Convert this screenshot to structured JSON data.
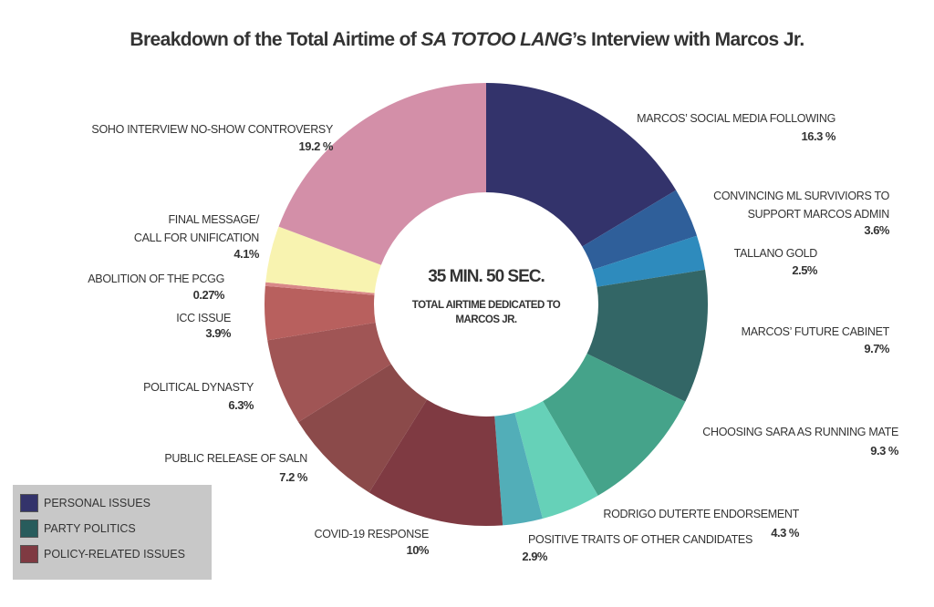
{
  "chart_data": {
    "type": "donut",
    "title_parts": [
      "Breakdown of the Total Airtime of ",
      "SA TOTOO LANG",
      "’s Interview with Marcos Jr."
    ],
    "center_text": [
      "35 MIN. 50 SEC.",
      "TOTAL AIRTIME DEDICATED TO\nMARCOS JR."
    ],
    "categories": [
      "MARCOS’ SOCIAL MEDIA FOLLOWING",
      "CONVINCING ML SURVIVIORS TO\nSUPPORT MARCOS ADMIN",
      "TALLANO GOLD",
      "MARCOS’ FUTURE CABINET",
      "CHOOSING SARA AS RUNNING MATE",
      "RODRIGO DUTERTE ENDORSEMENT",
      "POSITIVE TRAITS OF OTHER CANDIDATES",
      "COVID-19 RESPONSE",
      "PUBLIC RELEASE OF SALN",
      "POLITICAL DYNASTY",
      "ICC ISSUE",
      "ABOLITION OF THE PCGG",
      "FINAL MESSAGE/\nCALL FOR UNIFICATION",
      "SOHO INTERVIEW NO-SHOW CONTROVERSY"
    ],
    "values": [
      16.3,
      3.6,
      2.5,
      9.7,
      9.3,
      4.3,
      2.9,
      10,
      7.2,
      6.3,
      3.9,
      0.27,
      4.1,
      19.2
    ],
    "value_labels": [
      "16.3 %",
      "3.6%",
      "2.5%",
      "9.7%",
      "9.3 %",
      "4.3 %",
      "2.9%",
      "10%",
      "7.2 %",
      "6.3%",
      "3.9%",
      "0.27%",
      "4.1%",
      "19.2 %"
    ],
    "colors": [
      "#33336b",
      "#2f5f9a",
      "#2e8bbd",
      "#336666",
      "#45a38a",
      "#66d1b8",
      "#52aeb8",
      "#7f3a42",
      "#8b4a4a",
      "#a05555",
      "#b8605e",
      "#d88888",
      "#f8f3b0",
      "#d38fa8"
    ],
    "legend": [
      {
        "name": "PERSONAL ISSUES",
        "color": "#33336b"
      },
      {
        "name": "PARTY POLITICS",
        "color": "#285c5c"
      },
      {
        "name": "POLICY-RELATED ISSUES",
        "color": "#7f3a42"
      }
    ]
  }
}
